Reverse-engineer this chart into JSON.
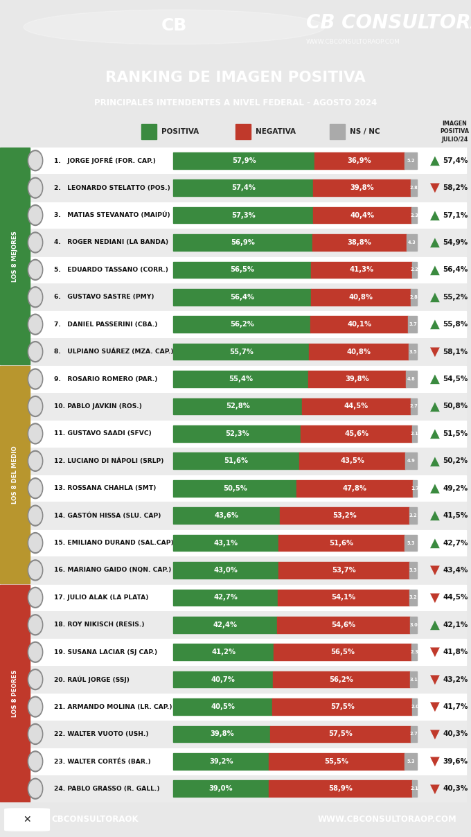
{
  "title1": "RANKING DE IMAGEN POSITIVA",
  "title2": "PRINCIPALES INTENDENTES A NIVEL FEDERAL - AGOSTO 2024",
  "header_bg": "#c0392b",
  "title_bg": "#9b59b6",
  "footer_bg": "#1a1a1a",
  "green_color": "#3a8a3f",
  "red_color": "#c0392b",
  "gray_color": "#aaaaaa",
  "white_bg": "#ffffff",
  "light_bg": "#f0f0f0",
  "names": [
    "1.   JORGE JOFRÉ (FOR. CAP.)",
    "2.   LEONARDO STELATTO (POS.)",
    "3.   MATIAS STEVANATO (MAIPÚ)",
    "4.   ROGER NEDIANI (LA BANDA)",
    "5.   EDUARDO TASSANO (CORR.)",
    "6.   GUSTAVO SASTRE (PMY)",
    "7.   DANIEL PASSERINI (CBA.)",
    "8.   ULPIANO SUÁREZ (MZA. CAP.)",
    "9.   ROSARIO ROMERO (PAR.)",
    "10. PABLO JAVKIN (ROS.)",
    "11. GUSTAVO SAADI (SFVC)",
    "12. LUCIANO DI NÁPOLI (SRLP)",
    "13. ROSSANA CHAHLA (SMT)",
    "14. GASTÓN HISSA (SLU. CAP)",
    "15. EMILIANO DURAND (SAL.CAP)",
    "16. MARIANO GAIDO (NQN. CAP.)",
    "17. JULIO ALAK (LA PLATA)",
    "18. ROY NIKISCH (RESIS.)",
    "19. SUSANA LACIAR (SJ CAP.)",
    "20. RAÚL JORGE (SSJ)",
    "21. ARMANDO MOLINA (LR. CAP.)",
    "22. WALTER VUOTO (USH.)",
    "23. WALTER CORTÉS (BAR.)",
    "24. PABLO GRASSO (R. GALL.)"
  ],
  "positive": [
    57.9,
    57.4,
    57.3,
    56.9,
    56.5,
    56.4,
    56.2,
    55.7,
    55.4,
    52.8,
    52.3,
    51.6,
    50.5,
    43.6,
    43.1,
    43.0,
    42.7,
    42.4,
    41.2,
    40.7,
    40.5,
    39.8,
    39.2,
    39.0
  ],
  "negative": [
    36.9,
    39.8,
    40.4,
    38.8,
    41.3,
    40.8,
    40.1,
    40.8,
    39.8,
    44.5,
    45.6,
    43.5,
    47.8,
    53.2,
    51.6,
    53.7,
    54.1,
    54.6,
    56.5,
    56.2,
    57.5,
    57.5,
    55.5,
    58.9
  ],
  "ns_nc": [
    5.2,
    2.8,
    2.3,
    4.3,
    2.2,
    2.8,
    3.7,
    3.5,
    4.8,
    2.7,
    2.1,
    4.9,
    1.7,
    3.2,
    5.3,
    3.3,
    3.2,
    3.0,
    2.3,
    3.1,
    2.0,
    2.7,
    5.3,
    2.1
  ],
  "july_values": [
    "57,4%",
    "58,2%",
    "57,1%",
    "54,9%",
    "56,4%",
    "55,2%",
    "55,8%",
    "58,1%",
    "54,5%",
    "50,8%",
    "51,5%",
    "50,2%",
    "49,2%",
    "41,5%",
    "42,7%",
    "43,4%",
    "44,5%",
    "42,1%",
    "41,8%",
    "43,2%",
    "41,7%",
    "40,3%",
    "39,6%",
    "40,3%"
  ],
  "trend_up": [
    true,
    false,
    true,
    true,
    true,
    true,
    true,
    false,
    true,
    true,
    true,
    true,
    true,
    true,
    true,
    false,
    false,
    true,
    false,
    false,
    false,
    false,
    false,
    false
  ],
  "group_labels": [
    "LOS 8 MEJORES",
    "LOS 8 DEL MEDIO",
    "LOS 8 PEORES"
  ],
  "group_colors": [
    "#3a8a3f",
    "#b8962e",
    "#c0392b"
  ],
  "group_ranges": [
    [
      0,
      8
    ],
    [
      8,
      16
    ],
    [
      16,
      24
    ]
  ]
}
